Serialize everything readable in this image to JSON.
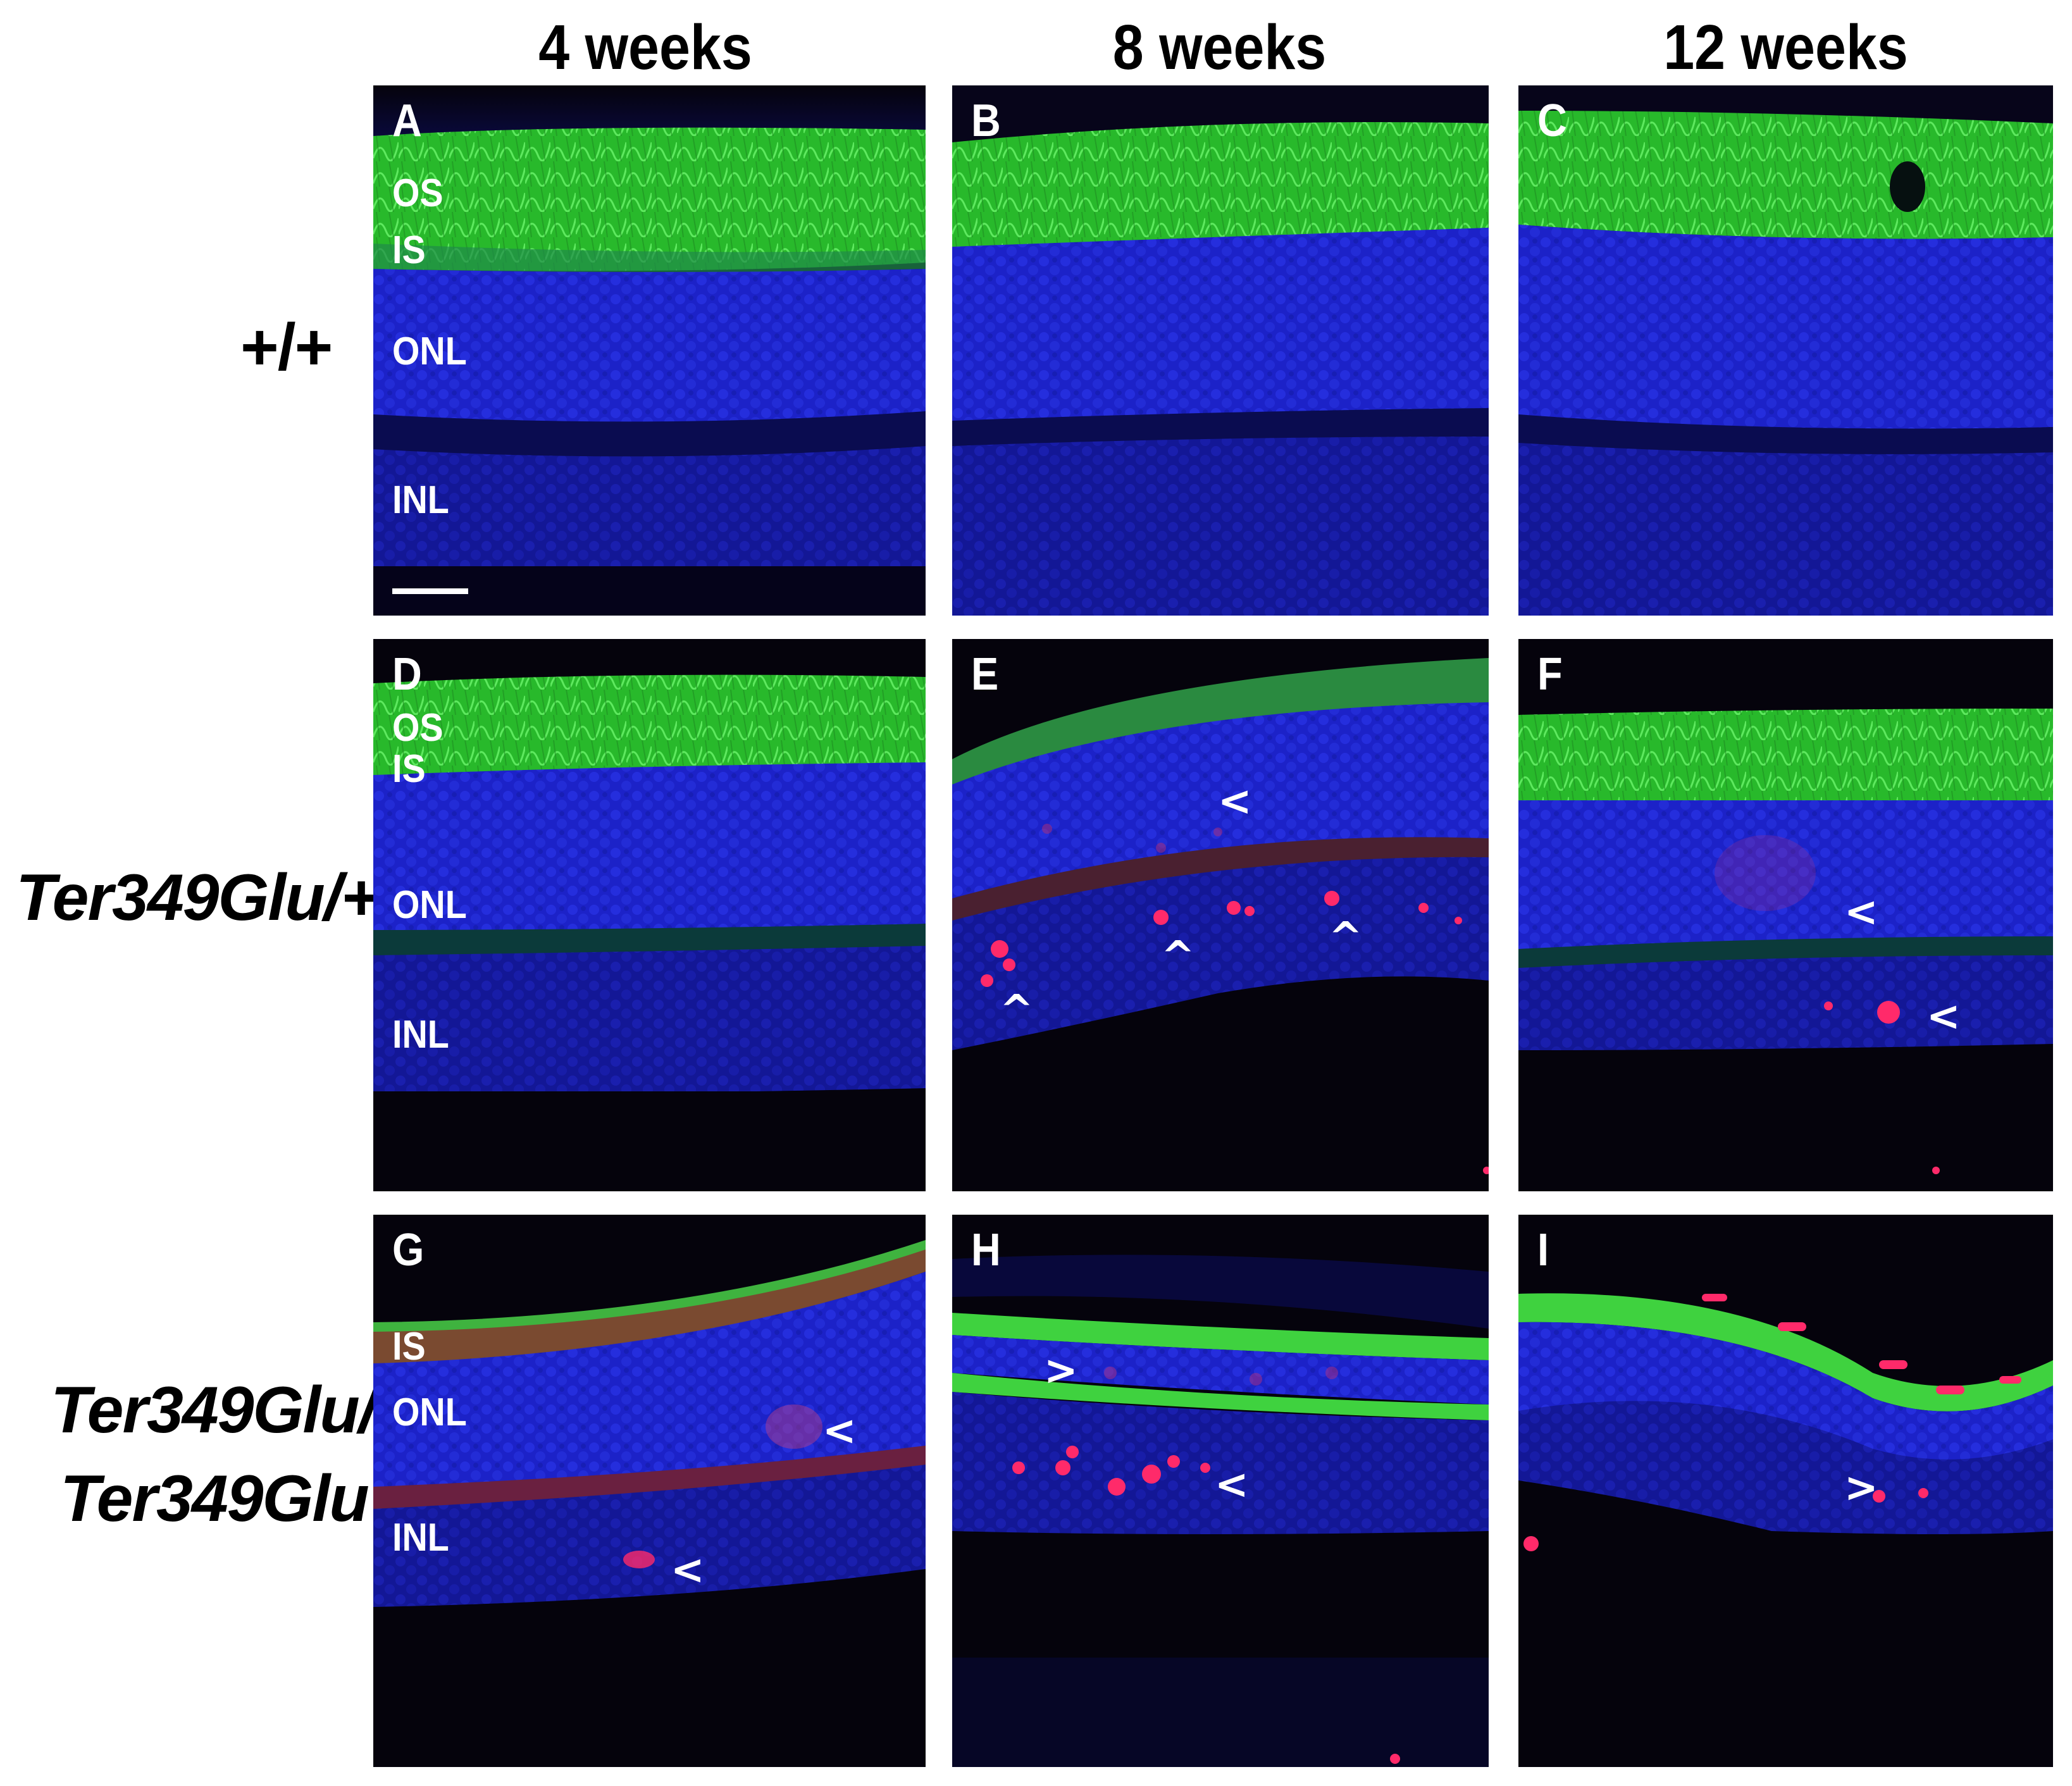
{
  "columns": [
    "4 weeks",
    "8 weeks",
    "12 weeks"
  ],
  "rows": {
    "r1": "+/+",
    "r2": "Ter349Glu/+",
    "r3_line1": "Ter349Glu/",
    "r3_line2": "Ter349Glu"
  },
  "panels": {
    "A": "A",
    "B": "B",
    "C": "C",
    "D": "D",
    "E": "E",
    "F": "F",
    "G": "G",
    "H": "H",
    "I": "I"
  },
  "layers": {
    "os": "OS",
    "is": "IS",
    "onl": "ONL",
    "inl": "INL"
  },
  "arrows": {
    "left": "<",
    "right": ">",
    "up": "^"
  },
  "colors": {
    "nuclei_stain": "#1a1fd8",
    "outer_segment_stain": "#2fd233",
    "apoptosis_stain": "#ff2a6a",
    "background": "#05030c"
  }
}
